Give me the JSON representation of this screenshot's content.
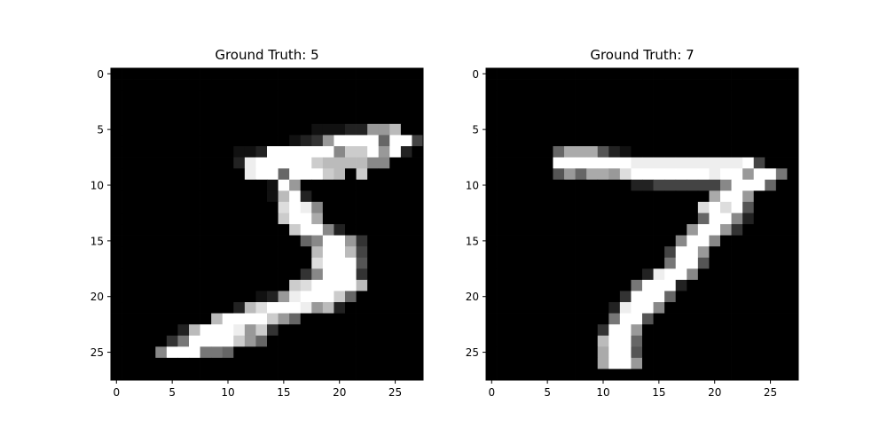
{
  "figure": {
    "background": "#ffffff"
  },
  "chart_data": [
    {
      "type": "heatmap",
      "title": "Ground Truth: 5",
      "xlabel": "",
      "ylabel": "",
      "colormap": "gray",
      "xlim": [
        -0.5,
        27.5
      ],
      "ylim": [
        27.5,
        -0.5
      ],
      "xticks": [
        0,
        5,
        10,
        15,
        20,
        25
      ],
      "yticks": [
        0,
        5,
        10,
        15,
        20,
        25
      ],
      "grid": false,
      "pixels": [
        "0000000000000000000000000000",
        "0000000000000000000000000000",
        "0000000000000000000000000000",
        "0000000000000000000000000000",
        "0000000000000000000000000000",
        "0000000000000000001112299b00",
        "00000000000000001239ffff6ff4",
        "00000000000112ffffff8ccf9f20",
        "000000000002efffffcbbbb88000",
        "000000000000eff6fffcb0c00000",
        "000000000000001f9000000000000",
        "000000000000001bf20000000000",
        "000000000000000dfe8000000000",
        "000000000000000cffa000000000",
        "0000000000000000cff820000000",
        "0000000000000000068ff9300000",
        "000000000000000000bffb400000",
        "000000000000000000dfff500000",
        "0000000000000000038fff300000",
        "0000000000000000cdffffb00000",
        "0000000000000129efffc6000000",
        "000000000002bdfffe9b20000000",
        "000000000bffffc9600000000000",
        "0000002bfffe9c30000000000000",
        "0000037ffffc9600000000000000",
        "00008fff7760000000000000000000",
        "0000000000000000000000000000",
        "0000000000000000000000000000"
      ]
    },
    {
      "type": "heatmap",
      "title": "Ground Truth: 7",
      "xlabel": "",
      "ylabel": "",
      "colormap": "gray",
      "xlim": [
        -0.5,
        27.5
      ],
      "ylim": [
        27.5,
        -0.5
      ],
      "xticks": [
        0,
        5,
        10,
        15,
        20,
        25
      ],
      "yticks": [
        0,
        5,
        10,
        15,
        20,
        25
      ],
      "grid": false,
      "pixels": [
        "0000000000000000000000000000",
        "0000000000000000000000000000",
        "0000000000000000000000000000",
        "0000000000000000000000000000",
        "0000000000000000000000000000",
        "0000000000000000000000000000",
        "0000000000000000000000000000",
        "0000006aaa5210000000000000000",
        "000000fffffffeeeeeeeeeef4000",
        "000000596aa9dfffffffeff9ff70",
        "0000000000000224444448fff60",
        "00000000000000000000aff90000",
        "0000000000000000000dfdf50000",
        "00000000000000000006ff820000",
        "0000000000000000009ff9300000",
        "000000000000000008ff8000000",
        "00000000000000004ff900000000",
        "00000000000000007ff50000000",
        "000000000000002eff800000000",
        "00000000000007fff2000000000",
        "0000000000003fff60000000000",
        "000000000002eff800000000000",
        "000000000007ff50000000000000",
        "00000000003ff900000000000000",
        "0000000000bff600000000000000",
        "0000000000aff500000000000000",
        "0000000000aff900000000000000",
        "0000000000000000000000000000"
      ]
    }
  ]
}
